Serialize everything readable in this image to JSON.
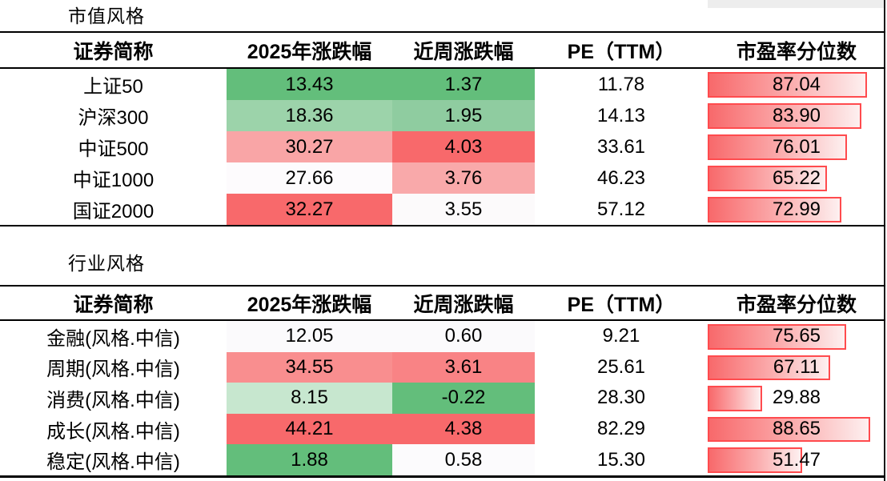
{
  "chart_data": [
    {
      "type": "table",
      "title": "市值风格",
      "columns": [
        "证券简称",
        "2025年涨跌幅",
        "近周涨跌幅",
        "PE（TTM）",
        "市盈率分位数"
      ],
      "rows": [
        {
          "name": "上证50",
          "ytd": "13.43",
          "ytd_bg": "#63BE7B",
          "week": "1.37",
          "week_bg": "#63BE7B",
          "pe": "11.78",
          "percentile": "87.04"
        },
        {
          "name": "沪深300",
          "ytd": "18.36",
          "ytd_bg": "#9CD3AA",
          "week": "1.95",
          "week_bg": "#8FCCA0",
          "pe": "14.13",
          "percentile": "83.90"
        },
        {
          "name": "中证500",
          "ytd": "30.27",
          "ytd_bg": "#F9A5A6",
          "week": "4.03",
          "week_bg": "#F8696B",
          "pe": "33.61",
          "percentile": "76.01"
        },
        {
          "name": "中证1000",
          "ytd": "27.66",
          "ytd_bg": "#FDFBFD",
          "week": "3.76",
          "week_bg": "#F9A9AA",
          "pe": "46.23",
          "percentile": "65.22"
        },
        {
          "name": "国证2000",
          "ytd": "32.27",
          "ytd_bg": "#F8696B",
          "week": "3.55",
          "week_bg": "#FCFAFB",
          "pe": "57.12",
          "percentile": "72.99"
        }
      ]
    },
    {
      "type": "table",
      "title": "行业风格",
      "columns": [
        "证券简称",
        "2025年涨跌幅",
        "近周涨跌幅",
        "PE（TTM）",
        "市盈率分位数"
      ],
      "rows": [
        {
          "name": "金融(风格.中信)",
          "ytd": "12.05",
          "ytd_bg": "#FBFAFC",
          "week": "0.60",
          "week_bg": "#FBFAFC",
          "pe": "9.21",
          "percentile": "75.65"
        },
        {
          "name": "周期(风格.中信)",
          "ytd": "34.55",
          "ytd_bg": "#F98E8F",
          "week": "3.61",
          "week_bg": "#F98385",
          "pe": "25.61",
          "percentile": "67.11"
        },
        {
          "name": "消费(风格.中信)",
          "ytd": "8.15",
          "ytd_bg": "#C7E7CF",
          "week": "-0.22",
          "week_bg": "#63BE7B",
          "pe": "28.30",
          "percentile": "29.88"
        },
        {
          "name": "成长(风格.中信)",
          "ytd": "44.21",
          "ytd_bg": "#F8696B",
          "week": "4.38",
          "week_bg": "#F8696B",
          "pe": "82.29",
          "percentile": "88.65"
        },
        {
          "name": "稳定(风格.中信)",
          "ytd": "1.88",
          "ytd_bg": "#63BE7B",
          "week": "0.58",
          "week_bg": "#FCFBFD",
          "pe": "15.30",
          "percentile": "51.47"
        }
      ]
    }
  ],
  "colors": {
    "databar_border": "#FF4B4E",
    "databar_fill_from": "#F8696B",
    "databar_fill_to": "#FDF0F0",
    "scale_max_green": "#63BE7B",
    "scale_max_red": "#F8696B",
    "scale_mid_white": "#FCFCFE",
    "top_strip_gray": "#EDEDED"
  },
  "databar_scale": {
    "min": 0,
    "percent_per_unit": 1.03
  }
}
